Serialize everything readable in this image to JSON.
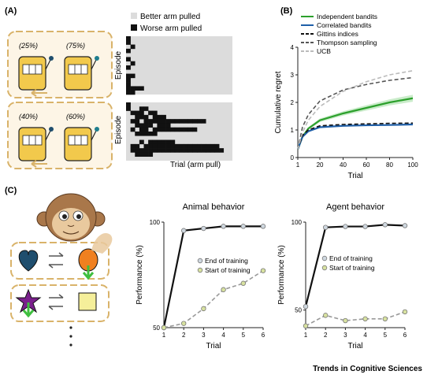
{
  "panel_a": {
    "tag": "(A)",
    "legend_better": "Better arm pulled",
    "legend_worse": "Worse arm pulled",
    "top_probs": [
      "(25%)",
      "(75%)"
    ],
    "bottom_probs": [
      "(40%)",
      "(60%)"
    ],
    "ylabel": "Episode",
    "xlabel": "Trial (arm pull)",
    "colors": {
      "better": "#dcdcdc",
      "worse": "#111111",
      "machine": "#f2c94c",
      "box": "#d9b36a"
    }
  },
  "panel_b": {
    "tag": "(B)"
  },
  "panel_c": {
    "tag": "(C)",
    "colors": {
      "heart": "#1f4e6e",
      "orange": "#f08020",
      "star": "#7a1f8c",
      "square": "#f5ef9a",
      "arrow": "#3fbf3f"
    }
  },
  "footer": "Trends in Cognitive Sciences",
  "chart_data": [
    {
      "type": "line",
      "xlabel": "Trial",
      "ylabel": "Cumulative regret",
      "xlim": [
        1,
        100
      ],
      "ylim": [
        0,
        4
      ],
      "xticks": [
        1,
        20,
        40,
        60,
        80,
        100
      ],
      "yticks": [
        0,
        1,
        2,
        3,
        4
      ],
      "legend_position": "top-left",
      "series": [
        {
          "name": "Independent bandits",
          "color": "#2ca02c",
          "style": "solid",
          "x": [
            1,
            5,
            10,
            20,
            40,
            60,
            80,
            100
          ],
          "y": [
            0.3,
            0.75,
            1.05,
            1.35,
            1.6,
            1.8,
            2.0,
            2.15
          ]
        },
        {
          "name": "Correlated bandits",
          "color": "#1f5fa8",
          "style": "solid",
          "x": [
            1,
            5,
            10,
            20,
            40,
            60,
            80,
            100
          ],
          "y": [
            0.3,
            0.75,
            0.95,
            1.1,
            1.15,
            1.17,
            1.18,
            1.2
          ]
        },
        {
          "name": "Gittins indices",
          "color": "#111111",
          "style": "dashed",
          "x": [
            1,
            5,
            10,
            20,
            40,
            60,
            80,
            100
          ],
          "y": [
            0.3,
            0.8,
            1.0,
            1.15,
            1.2,
            1.22,
            1.24,
            1.25
          ]
        },
        {
          "name": "Thompson sampling",
          "color": "#555555",
          "style": "dashed",
          "x": [
            1,
            5,
            10,
            20,
            40,
            60,
            80,
            100
          ],
          "y": [
            0.3,
            1.1,
            1.55,
            2.05,
            2.45,
            2.65,
            2.8,
            2.9
          ]
        },
        {
          "name": "UCB",
          "color": "#bbbbbb",
          "style": "dashed",
          "x": [
            1,
            5,
            10,
            20,
            40,
            60,
            80,
            100
          ],
          "y": [
            0.3,
            0.9,
            1.35,
            1.85,
            2.4,
            2.75,
            3.0,
            3.15
          ]
        }
      ]
    },
    {
      "type": "line",
      "title": "Animal behavior",
      "xlabel": "Trial",
      "ylabel": "Performance (%)",
      "xlim": [
        1,
        6
      ],
      "ylim": [
        50,
        100
      ],
      "xticks": [
        1,
        2,
        3,
        4,
        5,
        6
      ],
      "yticks": [
        50,
        100
      ],
      "series": [
        {
          "name": "End of training",
          "color": "#111111",
          "style": "solid",
          "x": [
            1,
            2,
            3,
            4,
            5,
            6
          ],
          "y": [
            50,
            96,
            97,
            98,
            98,
            98
          ]
        },
        {
          "name": "Start of training",
          "color": "#999999",
          "style": "dashed",
          "x": [
            1,
            2,
            3,
            4,
            5,
            6
          ],
          "y": [
            50,
            52,
            59,
            68,
            71,
            77
          ]
        }
      ]
    },
    {
      "type": "line",
      "title": "Agent behavior",
      "xlabel": "Trial",
      "ylabel": "Performance (%)",
      "xlim": [
        1,
        6
      ],
      "ylim": [
        40,
        100
      ],
      "xticks": [
        1,
        2,
        3,
        4,
        5,
        6
      ],
      "yticks": [
        50,
        100
      ],
      "series": [
        {
          "name": "End of training",
          "color": "#111111",
          "style": "solid",
          "x": [
            1,
            2,
            3,
            4,
            5,
            6
          ],
          "y": [
            52,
            97,
            97.5,
            97.5,
            98.5,
            98
          ]
        },
        {
          "name": "Start of training",
          "color": "#999999",
          "style": "dashed",
          "x": [
            1,
            2,
            3,
            4,
            5,
            6
          ],
          "y": [
            41,
            47,
            44,
            45,
            45,
            49
          ]
        }
      ]
    }
  ]
}
